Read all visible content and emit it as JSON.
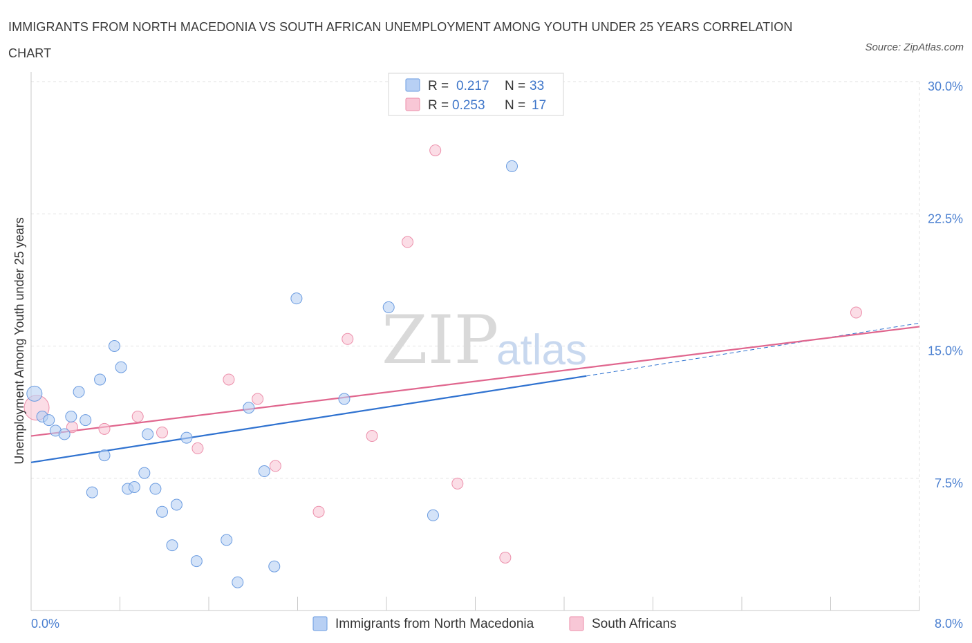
{
  "header": {
    "title": "IMMIGRANTS FROM NORTH MACEDONIA VS SOUTH AFRICAN UNEMPLOYMENT AMONG YOUTH UNDER 25 YEARS CORRELATION CHART",
    "source": "Source: ZipAtlas.com"
  },
  "watermark": {
    "zip": "ZIP",
    "atlas": "atlas"
  },
  "legend": {
    "r_label": "R =",
    "n_label": "N =",
    "series1": {
      "r": "0.217",
      "n": "33"
    },
    "series2": {
      "r": "0.253",
      "n": "17"
    }
  },
  "colors": {
    "series1_fill": "#b8d0f4",
    "series1_stroke": "#6a9be0",
    "series1_line": "#2f72d0",
    "series2_fill": "#f8c7d6",
    "series2_stroke": "#ec8eaa",
    "series2_line": "#e0668e"
  },
  "chart_data": {
    "type": "scatter",
    "title": "IMMIGRANTS FROM NORTH MACEDONIA VS SOUTH AFRICAN UNEMPLOYMENT AMONG YOUTH UNDER 25 YEARS CORRELATION CHART",
    "xlabel": "",
    "ylabel": "Unemployment Among Youth under 25 years",
    "xlim": [
      0,
      8.0
    ],
    "ylim": [
      0,
      30.0
    ],
    "x_tick_labels": [
      "0.0%",
      "8.0%"
    ],
    "y_ticks": [
      7.5,
      15.0,
      22.5,
      30.0
    ],
    "y_tick_labels": [
      "7.5%",
      "15.0%",
      "22.5%",
      "30.0%"
    ],
    "grid": true,
    "legend_position": "bottom",
    "series": [
      {
        "name": "Immigrants from North Macedonia",
        "points": [
          {
            "x": 0.03,
            "y": 12.3,
            "big": true
          },
          {
            "x": 0.1,
            "y": 11.0
          },
          {
            "x": 0.16,
            "y": 10.8
          },
          {
            "x": 0.22,
            "y": 10.2
          },
          {
            "x": 0.3,
            "y": 10.0
          },
          {
            "x": 0.36,
            "y": 11.0
          },
          {
            "x": 0.43,
            "y": 12.4
          },
          {
            "x": 0.49,
            "y": 10.8
          },
          {
            "x": 0.55,
            "y": 6.7
          },
          {
            "x": 0.62,
            "y": 13.1
          },
          {
            "x": 0.66,
            "y": 8.8
          },
          {
            "x": 0.75,
            "y": 15.0
          },
          {
            "x": 0.81,
            "y": 13.8
          },
          {
            "x": 0.87,
            "y": 6.9
          },
          {
            "x": 0.93,
            "y": 7.0
          },
          {
            "x": 1.02,
            "y": 7.8
          },
          {
            "x": 1.05,
            "y": 10.0
          },
          {
            "x": 1.12,
            "y": 6.9
          },
          {
            "x": 1.18,
            "y": 5.6
          },
          {
            "x": 1.27,
            "y": 3.7
          },
          {
            "x": 1.31,
            "y": 6.0
          },
          {
            "x": 1.4,
            "y": 9.8
          },
          {
            "x": 1.49,
            "y": 2.8
          },
          {
            "x": 1.76,
            "y": 4.0
          },
          {
            "x": 1.86,
            "y": 1.6
          },
          {
            "x": 1.96,
            "y": 11.5
          },
          {
            "x": 2.1,
            "y": 7.9
          },
          {
            "x": 2.19,
            "y": 2.5
          },
          {
            "x": 2.39,
            "y": 17.7
          },
          {
            "x": 2.82,
            "y": 12.0
          },
          {
            "x": 3.22,
            "y": 17.2
          },
          {
            "x": 3.62,
            "y": 5.4
          },
          {
            "x": 4.33,
            "y": 25.2
          }
        ],
        "trend": {
          "x0": 0,
          "y0": 8.4,
          "x1": 5.0,
          "y1": 13.3,
          "x_ext": 8.0,
          "y_ext": 16.3
        }
      },
      {
        "name": "South Africans",
        "points": [
          {
            "x": 0.05,
            "y": 11.5,
            "big": true
          },
          {
            "x": 0.37,
            "y": 10.4
          },
          {
            "x": 0.66,
            "y": 10.3
          },
          {
            "x": 0.96,
            "y": 11.0
          },
          {
            "x": 1.18,
            "y": 10.1
          },
          {
            "x": 1.5,
            "y": 9.2
          },
          {
            "x": 1.78,
            "y": 13.1
          },
          {
            "x": 2.04,
            "y": 12.0
          },
          {
            "x": 2.2,
            "y": 8.2
          },
          {
            "x": 2.59,
            "y": 5.6
          },
          {
            "x": 2.85,
            "y": 15.4
          },
          {
            "x": 3.07,
            "y": 9.9
          },
          {
            "x": 3.39,
            "y": 20.9
          },
          {
            "x": 3.64,
            "y": 26.1
          },
          {
            "x": 3.84,
            "y": 7.2
          },
          {
            "x": 4.27,
            "y": 3.0
          },
          {
            "x": 7.43,
            "y": 16.9
          }
        ],
        "trend": {
          "x0": 0,
          "y0": 9.9,
          "x1": 8.0,
          "y1": 16.1
        }
      }
    ]
  }
}
